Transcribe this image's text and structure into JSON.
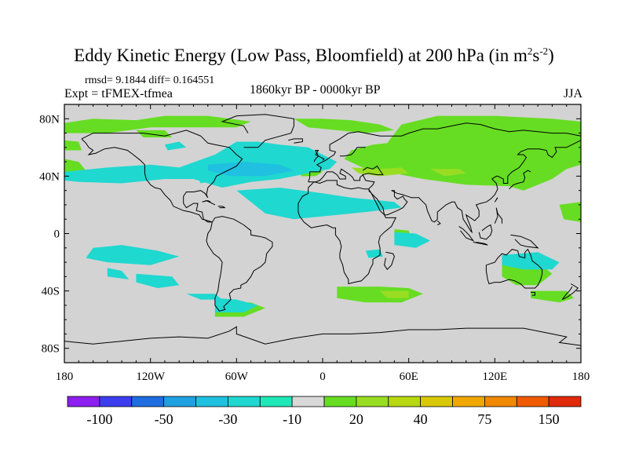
{
  "title": {
    "main": "Eddy Kinetic Energy (Low Pass, Bloomfield) at 200 hPa (in m",
    "sup1": "2",
    "mid": "s",
    "sup2": "-2",
    "end": ")"
  },
  "stats": "rmsd= 9.1844 diff= 0.164551",
  "experiment": "Expt = tFMEX-tfmea",
  "period": "1860kyr BP - 0000kyr BP",
  "season": "JJA",
  "axes": {
    "x_ticks": [
      {
        "lon": -180,
        "label": "180"
      },
      {
        "lon": -120,
        "label": "120W"
      },
      {
        "lon": -60,
        "label": "60W"
      },
      {
        "lon": 0,
        "label": "0"
      },
      {
        "lon": 60,
        "label": "60E"
      },
      {
        "lon": 120,
        "label": "120E"
      },
      {
        "lon": 180,
        "label": "180"
      }
    ],
    "y_ticks": [
      {
        "lat": 80,
        "label": "80N"
      },
      {
        "lat": 40,
        "label": "40N"
      },
      {
        "lat": 0,
        "label": "0"
      },
      {
        "lat": -40,
        "label": "40S"
      },
      {
        "lat": -80,
        "label": "80S"
      }
    ]
  },
  "colorbar": {
    "colors": [
      "#8c1ff0",
      "#3d3df0",
      "#1f6de0",
      "#1fa0e0",
      "#1fc0e0",
      "#1fd8d0",
      "#1fe8b8",
      "#d8d8d8",
      "#66dd22",
      "#99dd22",
      "#b8d812",
      "#d8c808",
      "#f0a800",
      "#f08800",
      "#f05a00",
      "#e02a0a"
    ],
    "labels": [
      {
        "after": 1,
        "text": "-100"
      },
      {
        "after": 3,
        "text": "-50"
      },
      {
        "after": 5,
        "text": "-30"
      },
      {
        "after": 7,
        "text": "-10"
      },
      {
        "after": 9,
        "text": "20"
      },
      {
        "after": 11,
        "text": "40"
      },
      {
        "after": 13,
        "text": "75"
      },
      {
        "after": 15,
        "text": "150"
      }
    ]
  },
  "field_colors": {
    "background": "#d3d3d3",
    "positive": "#66dd22",
    "positive_strong": "#99dd22",
    "negative": "#1fd8d0",
    "negative_strong": "#1fc0e0",
    "coast": "#000000"
  }
}
